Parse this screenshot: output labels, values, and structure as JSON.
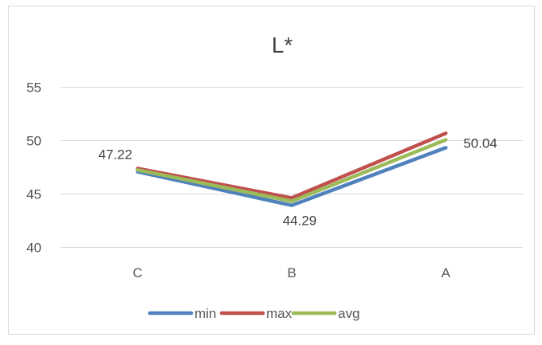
{
  "chart_data": {
    "type": "line",
    "title": "L*",
    "xlabel": "",
    "ylabel": "",
    "categories": [
      "C",
      "B",
      "A"
    ],
    "ylim": [
      40,
      55
    ],
    "yticks": [
      40,
      45,
      50,
      55
    ],
    "grid": true,
    "legend_position": "bottom",
    "series": [
      {
        "name": "min",
        "color": "#4F81BD",
        "values": [
          47.05,
          43.9,
          49.3
        ]
      },
      {
        "name": "max",
        "color": "#C0504D",
        "values": [
          47.35,
          44.6,
          50.65
        ]
      },
      {
        "name": "avg",
        "color": "#9BBB59",
        "values": [
          47.22,
          44.29,
          50.04
        ]
      }
    ],
    "data_labels": [
      {
        "category": "C",
        "series": "avg",
        "text": "47.22"
      },
      {
        "category": "B",
        "series": "avg",
        "text": "44.29"
      },
      {
        "category": "A",
        "series": "avg",
        "text": "50.04"
      }
    ]
  }
}
